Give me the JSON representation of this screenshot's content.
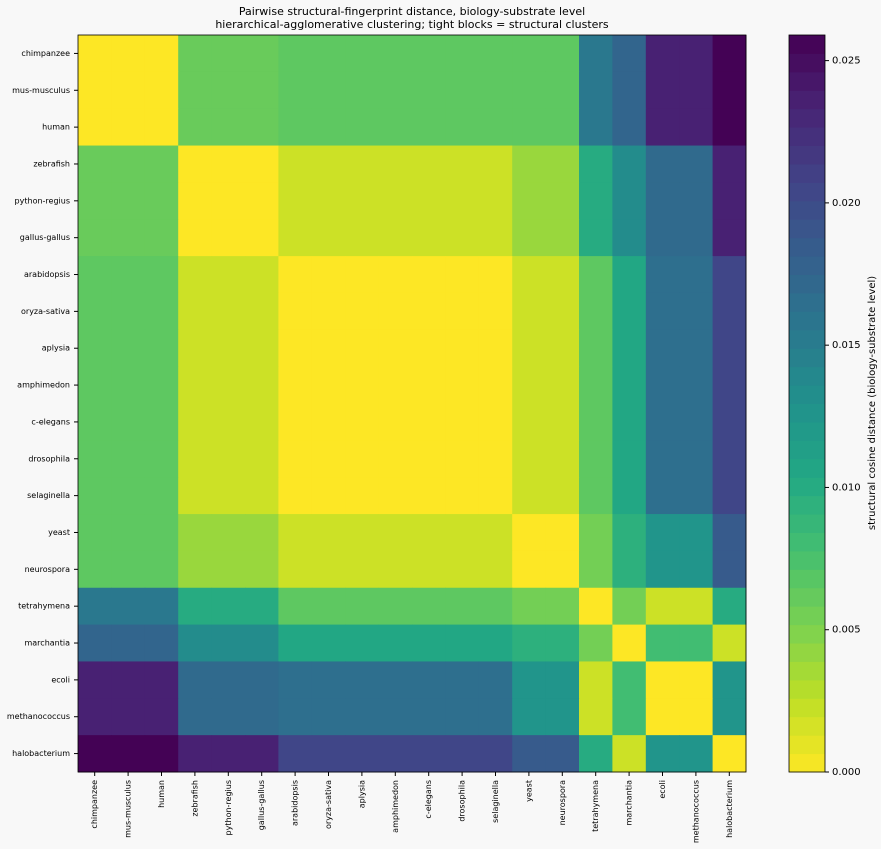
{
  "chart_data": {
    "type": "heatmap",
    "title": "Pairwise structural-fingerprint distance, biology-substrate level",
    "subtitle": "hierarchical-agglomerative clustering; tight blocks = structural clusters",
    "categories": [
      "chimpanzee",
      "mus-musculus",
      "human",
      "zebrafish",
      "python-regius",
      "gallus-gallus",
      "arabidopsis",
      "oryza-sativa",
      "aplysia",
      "amphimedon",
      "c-elegans",
      "drosophila",
      "selaginella",
      "yeast",
      "neurospora",
      "tetrahymena",
      "marchantia",
      "ecoli",
      "methanococcus",
      "halobacterium"
    ],
    "colormap": "viridis_r",
    "colorbar_label": "structural cosine distance (biology-substrate level)",
    "colorbar_lim": [
      0,
      0.0259
    ],
    "colorbar_ticks": [
      {
        "value": 0,
        "label": "0.000"
      },
      {
        "value": 0.005,
        "label": "0.005"
      },
      {
        "value": 0.01,
        "label": "0.010"
      },
      {
        "value": 0.015,
        "label": "0.015"
      },
      {
        "value": 0.02,
        "label": "0.020"
      },
      {
        "value": 0.025,
        "label": "0.025"
      }
    ],
    "values": [
      [
        0,
        0,
        0,
        0.006,
        0.006,
        0.006,
        0.0065,
        0.0065,
        0.0065,
        0.0065,
        0.0065,
        0.0065,
        0.0065,
        0.0065,
        0.0065,
        0.0155,
        0.0175,
        0.0235,
        0.0235,
        0.0258
      ],
      [
        0,
        0,
        0,
        0.006,
        0.006,
        0.006,
        0.0065,
        0.0065,
        0.0065,
        0.0065,
        0.0065,
        0.0065,
        0.0065,
        0.0065,
        0.0065,
        0.0155,
        0.0175,
        0.0235,
        0.0235,
        0.0258
      ],
      [
        0,
        0,
        0,
        0.006,
        0.006,
        0.006,
        0.0065,
        0.0065,
        0.0065,
        0.0065,
        0.0065,
        0.0065,
        0.0065,
        0.0065,
        0.0065,
        0.0155,
        0.0175,
        0.0235,
        0.0235,
        0.0258
      ],
      [
        0.006,
        0.006,
        0.006,
        0,
        0,
        0,
        0.002,
        0.002,
        0.002,
        0.002,
        0.002,
        0.002,
        0.002,
        0.004,
        0.004,
        0.01,
        0.0135,
        0.017,
        0.017,
        0.0235
      ],
      [
        0.006,
        0.006,
        0.006,
        0,
        0,
        0,
        0.002,
        0.002,
        0.002,
        0.002,
        0.002,
        0.002,
        0.002,
        0.004,
        0.004,
        0.01,
        0.0135,
        0.017,
        0.017,
        0.0235
      ],
      [
        0.006,
        0.006,
        0.006,
        0,
        0,
        0,
        0.002,
        0.002,
        0.002,
        0.002,
        0.002,
        0.002,
        0.002,
        0.004,
        0.004,
        0.01,
        0.0135,
        0.017,
        0.017,
        0.0235
      ],
      [
        0.0065,
        0.0065,
        0.0065,
        0.002,
        0.002,
        0.002,
        0,
        0,
        0,
        0,
        0,
        0,
        0,
        0.002,
        0.002,
        0.0065,
        0.0105,
        0.0165,
        0.0165,
        0.0205
      ],
      [
        0.0065,
        0.0065,
        0.0065,
        0.002,
        0.002,
        0.002,
        0,
        0,
        0,
        0,
        0,
        0,
        0,
        0.002,
        0.002,
        0.0065,
        0.0105,
        0.0165,
        0.0165,
        0.0205
      ],
      [
        0.0065,
        0.0065,
        0.0065,
        0.002,
        0.002,
        0.002,
        0,
        0,
        0,
        0,
        0,
        0,
        0,
        0.002,
        0.002,
        0.0065,
        0.0105,
        0.0165,
        0.0165,
        0.0205
      ],
      [
        0.0065,
        0.0065,
        0.0065,
        0.002,
        0.002,
        0.002,
        0,
        0,
        0,
        0,
        0,
        0,
        0,
        0.002,
        0.002,
        0.0065,
        0.0105,
        0.0165,
        0.0165,
        0.0205
      ],
      [
        0.0065,
        0.0065,
        0.0065,
        0.002,
        0.002,
        0.002,
        0,
        0,
        0,
        0,
        0,
        0,
        0,
        0.002,
        0.002,
        0.0065,
        0.0105,
        0.0165,
        0.0165,
        0.0205
      ],
      [
        0.0065,
        0.0065,
        0.0065,
        0.002,
        0.002,
        0.002,
        0,
        0,
        0,
        0,
        0,
        0,
        0,
        0.002,
        0.002,
        0.0065,
        0.0105,
        0.0165,
        0.0165,
        0.0205
      ],
      [
        0.0065,
        0.0065,
        0.0065,
        0.002,
        0.002,
        0.002,
        0,
        0,
        0,
        0,
        0,
        0,
        0,
        0.002,
        0.002,
        0.0065,
        0.0105,
        0.0165,
        0.0165,
        0.0205
      ],
      [
        0.0065,
        0.0065,
        0.0065,
        0.004,
        0.004,
        0.004,
        0.002,
        0.002,
        0.002,
        0.002,
        0.002,
        0.002,
        0.002,
        0,
        0,
        0.0055,
        0.0095,
        0.0125,
        0.0125,
        0.0185
      ],
      [
        0.0065,
        0.0065,
        0.0065,
        0.004,
        0.004,
        0.004,
        0.002,
        0.002,
        0.002,
        0.002,
        0.002,
        0.002,
        0.002,
        0,
        0,
        0.0055,
        0.0095,
        0.0125,
        0.0125,
        0.0185
      ],
      [
        0.0155,
        0.0155,
        0.0155,
        0.01,
        0.01,
        0.01,
        0.0065,
        0.0065,
        0.0065,
        0.0065,
        0.0065,
        0.0065,
        0.0065,
        0.0055,
        0.0055,
        0,
        0.0055,
        0.002,
        0.002,
        0.01
      ],
      [
        0.0175,
        0.0175,
        0.0175,
        0.0135,
        0.0135,
        0.0135,
        0.0105,
        0.0105,
        0.0105,
        0.0105,
        0.0105,
        0.0105,
        0.0105,
        0.0095,
        0.0095,
        0.0055,
        0,
        0.008,
        0.008,
        0.002
      ],
      [
        0.0235,
        0.0235,
        0.0235,
        0.017,
        0.017,
        0.017,
        0.0165,
        0.0165,
        0.0165,
        0.0165,
        0.0165,
        0.0165,
        0.0165,
        0.0125,
        0.0125,
        0.002,
        0.008,
        0,
        0,
        0.0125
      ],
      [
        0.0235,
        0.0235,
        0.0235,
        0.017,
        0.017,
        0.017,
        0.0165,
        0.0165,
        0.0165,
        0.0165,
        0.0165,
        0.0165,
        0.0165,
        0.0125,
        0.0125,
        0.002,
        0.008,
        0,
        0,
        0.0125
      ],
      [
        0.0258,
        0.0258,
        0.0258,
        0.0235,
        0.0235,
        0.0235,
        0.0205,
        0.0205,
        0.0205,
        0.0205,
        0.0205,
        0.0205,
        0.0205,
        0.0185,
        0.0185,
        0.01,
        0.002,
        0.0125,
        0.0125,
        0
      ]
    ]
  }
}
